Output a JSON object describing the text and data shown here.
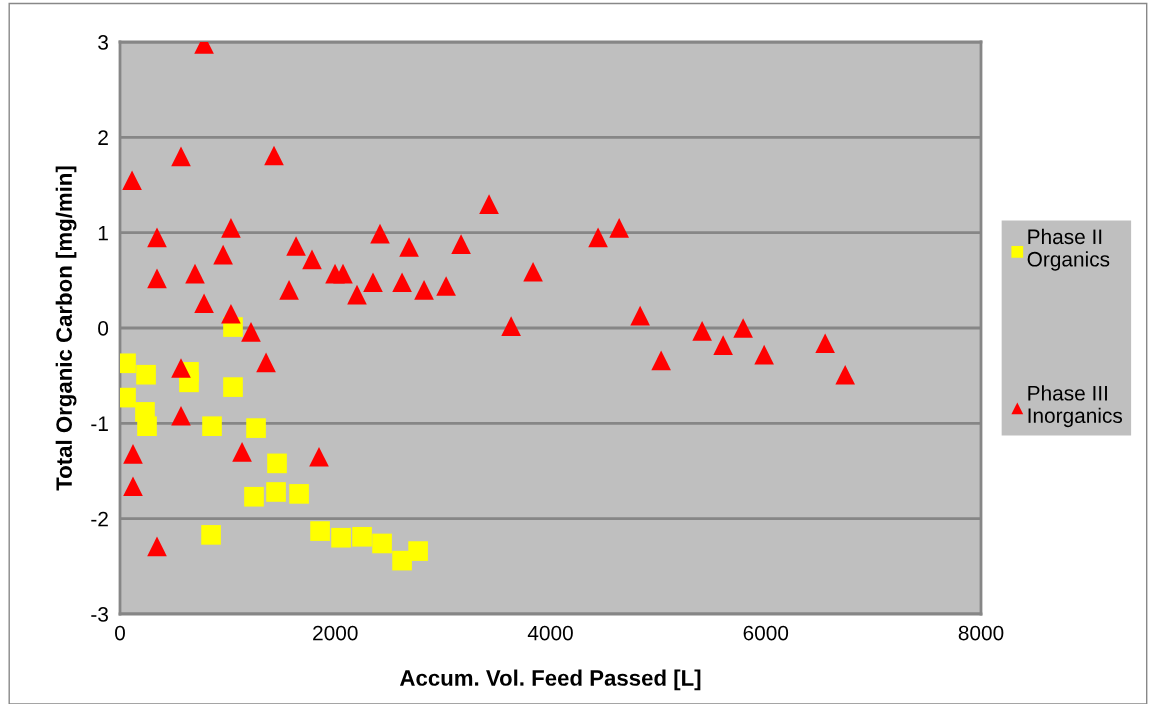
{
  "chart_data": {
    "type": "scatter",
    "xlabel": "Accum. Vol. Feed Passed [L]",
    "ylabel": "Total Organic Carbon [mg/min]",
    "xlim": [
      0,
      8000
    ],
    "xticks": [
      0,
      2000,
      4000,
      6000,
      8000
    ],
    "ylim": [
      -3,
      3
    ],
    "yticks": [
      -3,
      -2,
      -1,
      0,
      1,
      2,
      3
    ],
    "grid": "y",
    "legend": "right",
    "series": [
      {
        "name": "Phase II\nOrganics",
        "color": "#ffff00",
        "marker": "square",
        "x": [
          56,
          56,
          242,
          232,
          251,
          641,
          641,
          1050,
          1050,
          855,
          1264,
          1459,
          1245,
          1450,
          1664,
          846,
          1859,
          2054,
          2249,
          2435,
          2621,
          2770
        ],
        "values": [
          -0.37,
          -0.73,
          -0.49,
          -0.88,
          -1.03,
          -0.46,
          -0.57,
          -0.62,
          0.01,
          -1.03,
          -1.05,
          -1.42,
          -1.77,
          -1.72,
          -1.74,
          -2.17,
          -2.13,
          -2.2,
          -2.19,
          -2.26,
          -2.44,
          -2.34
        ]
      },
      {
        "name": "Phase III\nInorganics",
        "color": "#ff0000",
        "marker": "triangle",
        "x": [
          781,
          112,
          567,
          1431,
          344,
          344,
          697,
          781,
          958,
          1031,
          1031,
          1217,
          1357,
          567,
          567,
          1134,
          121,
          121,
          1849,
          344,
          1636,
          1784,
          1571,
          1998,
          2072,
          2202,
          2351,
          2416,
          2621,
          2686,
          2825,
          3030,
          3169,
          3429,
          3634,
          3838,
          4442,
          4638,
          4833,
          5028,
          5409,
          5604,
          5790,
          5985,
          6552,
          6738
        ],
        "values": [
          2.98,
          1.55,
          1.8,
          1.81,
          0.95,
          0.52,
          0.57,
          0.26,
          0.77,
          1.05,
          0.15,
          -0.04,
          -0.36,
          -0.42,
          -0.92,
          -1.3,
          -1.32,
          -1.66,
          -1.35,
          -2.29,
          0.86,
          0.72,
          0.4,
          0.57,
          0.57,
          0.35,
          0.48,
          0.99,
          0.48,
          0.85,
          0.4,
          0.44,
          0.88,
          1.3,
          0.02,
          0.59,
          0.95,
          1.05,
          0.13,
          -0.34,
          -0.03,
          -0.18,
          0.0,
          -0.28,
          -0.16,
          -0.49
        ]
      }
    ]
  }
}
